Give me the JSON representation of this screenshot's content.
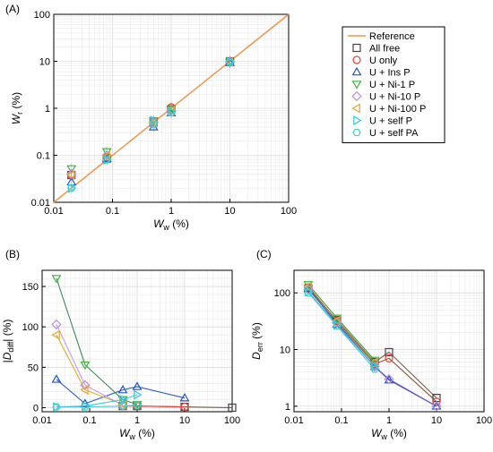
{
  "chart_data": [
    {
      "panel": "(A)",
      "type": "scatter",
      "xscale": "log",
      "yscale": "log",
      "xlim": [
        0.01,
        100
      ],
      "ylim": [
        0.01,
        100
      ],
      "xticks": [
        "0.01",
        "0.1",
        "1",
        "10",
        "100"
      ],
      "yticks": [
        "0.01",
        "0.1",
        "1",
        "10",
        "100"
      ],
      "xlabel": {
        "main": "W",
        "sub": "w",
        "unit": " (%)"
      },
      "ylabel": {
        "main": "W",
        "sub": "r",
        "unit": " (%)"
      },
      "grid": true,
      "legend_position": "right",
      "reference": {
        "name": "Reference",
        "x": [
          0.01,
          100
        ],
        "y": [
          0.01,
          100
        ]
      },
      "series": [
        {
          "name": "All free",
          "x": [
            0.02,
            0.08,
            0.5,
            1,
            10
          ],
          "y": [
            0.038,
            0.085,
            0.5,
            0.95,
            10
          ]
        },
        {
          "name": "U only",
          "x": [
            0.02,
            0.08,
            0.5,
            1,
            10
          ],
          "y": [
            0.038,
            0.09,
            0.5,
            1.05,
            10
          ]
        },
        {
          "name": "U + Ins P",
          "x": [
            0.02,
            0.08,
            0.5,
            1,
            10
          ],
          "y": [
            0.027,
            0.085,
            0.4,
            0.8,
            9.3
          ]
        },
        {
          "name": "U + Ni-1 P",
          "x": [
            0.02,
            0.08,
            0.5,
            1,
            10
          ],
          "y": [
            0.052,
            0.12,
            0.55,
            0.95,
            9.5
          ]
        },
        {
          "name": "U + Ni-10 P",
          "x": [
            0.02,
            0.08,
            0.5,
            1,
            10
          ],
          "y": [
            0.04,
            0.1,
            0.5,
            0.9,
            9.7
          ]
        },
        {
          "name": "U + Ni-100 P",
          "x": [
            0.02,
            0.08,
            0.5,
            1,
            10
          ],
          "y": [
            0.038,
            0.095,
            0.5,
            0.9,
            9.7
          ]
        },
        {
          "name": "U + self P",
          "x": [
            0.02,
            0.08,
            0.5,
            1,
            10
          ],
          "y": [
            0.02,
            0.08,
            0.55,
            0.85,
            9.8
          ]
        },
        {
          "name": "U + self PA",
          "x": [
            0.02,
            0.08,
            0.5,
            1,
            10
          ],
          "y": [
            0.02,
            0.08,
            0.45,
            0.8,
            9.8
          ]
        }
      ]
    },
    {
      "panel": "(B)",
      "type": "line",
      "xscale": "log",
      "yscale": "linear",
      "xlim": [
        0.01,
        100
      ],
      "ylim": [
        -5,
        170
      ],
      "xticks": [
        "0.01",
        "0.1",
        "1",
        "10",
        "100"
      ],
      "yticks": [
        "0",
        "50",
        "100",
        "150"
      ],
      "xlabel": {
        "main": "W",
        "sub": "w",
        "unit": " (%)"
      },
      "ylabel": {
        "main": "|D",
        "sub": "diff",
        "unit": "| (%)"
      },
      "grid": true,
      "series": [
        {
          "name": "All free",
          "x": [
            0.5,
            1,
            10,
            100
          ],
          "y": [
            2,
            2,
            1,
            0
          ]
        },
        {
          "name": "U only",
          "x": [
            1,
            10
          ],
          "y": [
            2,
            1
          ]
        },
        {
          "name": "U + Ins P",
          "x": [
            0.02,
            0.08,
            0.5,
            1,
            10
          ],
          "y": [
            35,
            5,
            22,
            26,
            12
          ]
        },
        {
          "name": "U + Ni-1 P",
          "x": [
            0.02,
            0.08,
            0.5,
            1
          ],
          "y": [
            160,
            53,
            10,
            4
          ]
        },
        {
          "name": "U + Ni-10 P",
          "x": [
            0.02,
            0.08,
            0.5
          ],
          "y": [
            103,
            28,
            3
          ]
        },
        {
          "name": "U + Ni-100 P",
          "x": [
            0.02,
            0.08,
            0.5
          ],
          "y": [
            90,
            22,
            4
          ]
        },
        {
          "name": "U + self P",
          "x": [
            0.02,
            0.08,
            0.5,
            1
          ],
          "y": [
            1,
            2,
            10,
            16
          ]
        },
        {
          "name": "U + self PA",
          "x": [
            0.02,
            0.08,
            0.5,
            1
          ],
          "y": [
            1,
            1,
            2,
            3
          ]
        }
      ]
    },
    {
      "panel": "(C)",
      "type": "line",
      "xscale": "log",
      "yscale": "log",
      "xlim": [
        0.01,
        100
      ],
      "ylim": [
        0.8,
        250
      ],
      "xticks": [
        "0.01",
        "0.1",
        "1",
        "10",
        "100"
      ],
      "yticks": [
        "1",
        "10",
        "100"
      ],
      "xlabel": {
        "main": "W",
        "sub": "w",
        "unit": " (%)"
      },
      "ylabel": {
        "main": "D",
        "sub": "err",
        "unit": " (%)"
      },
      "grid": true,
      "series": [
        {
          "name": "All free",
          "x": [
            0.02,
            0.08,
            0.5,
            1,
            10
          ],
          "y": [
            120,
            33,
            6,
            9,
            1.4
          ]
        },
        {
          "name": "U only",
          "x": [
            0.02,
            0.08,
            0.5,
            1,
            10
          ],
          "y": [
            125,
            32,
            5.5,
            7,
            1.2
          ]
        },
        {
          "name": "U + Ins P",
          "x": [
            0.02,
            0.08,
            0.5,
            1,
            10
          ],
          "y": [
            120,
            28,
            5,
            2.9,
            1
          ]
        },
        {
          "name": "U + Ni-1 P",
          "x": [
            0.02,
            0.08,
            0.5
          ],
          "y": [
            140,
            36,
            6.5
          ]
        },
        {
          "name": "U + Ni-10 P",
          "x": [
            0.02,
            0.08,
            0.5,
            1,
            10
          ],
          "y": [
            115,
            30,
            5,
            3,
            1
          ]
        },
        {
          "name": "U + Ni-100 P",
          "x": [
            0.02,
            0.08,
            0.5
          ],
          "y": [
            130,
            32,
            6
          ]
        },
        {
          "name": "U + self P",
          "x": [
            0.02,
            0.08,
            0.5
          ],
          "y": [
            105,
            27,
            5
          ]
        },
        {
          "name": "U + self PA",
          "x": [
            0.02,
            0.08,
            0.5
          ],
          "y": [
            100,
            26,
            4.5
          ]
        }
      ]
    }
  ],
  "style": {
    "reference_color": "#f0964a",
    "series_colors": {
      "All free": "#444444",
      "U only": "#e8413c",
      "U + Ins P": "#2456c8",
      "U + Ni-1 P": "#3db53d",
      "U + Ni-10 P": "#b98be0",
      "U + Ni-100 P": "#e6a52c",
      "U + self P": "#2cc8e6",
      "U + self PA": "#3ad3c8"
    },
    "series_markers": {
      "All free": "square",
      "U only": "circle",
      "U + Ins P": "triangle-up",
      "U + Ni-1 P": "triangle-down",
      "U + Ni-10 P": "diamond",
      "U + Ni-100 P": "triangle-left",
      "U + self P": "triangle-right",
      "U + self PA": "hexagon"
    },
    "line_colors_B": {
      "All free": "#7a5a4a",
      "U only": "#e8413c",
      "U + Ins P": "#2e5fd0",
      "U + Ni-1 P": "#3d8a5a",
      "U + Ni-10 P": "#c49be6",
      "U + Ni-100 P": "#d4b02a",
      "U + self P": "#36c9ea",
      "U + self PA": "#4cc6d6"
    },
    "line_colors_C": {
      "All free": "#7a5a4a",
      "U only": "#8a5a3a",
      "U + Ins P": "#4a4ac0",
      "U + Ni-1 P": "#4a9a3a",
      "U + Ni-10 P": "#6a5ac0",
      "U + Ni-100 P": "#9a8a2a",
      "U + self P": "#36c9ea",
      "U + self PA": "#4cc6d6"
    }
  }
}
